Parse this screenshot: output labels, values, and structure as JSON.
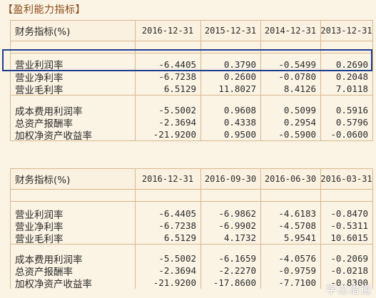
{
  "title": "【盈利能力指标】",
  "table1": {
    "header": [
      "财务指标(%)",
      "2016-12-31",
      "2015-12-31",
      "2014-12-31",
      "2013-12-31"
    ],
    "groupA": [
      {
        "label": "营业利润率",
        "values": [
          "-6.4405",
          "0.3790",
          "-0.5499",
          "0.2690"
        ]
      },
      {
        "label": "营业净利率",
        "values": [
          "-6.7238",
          "0.2600",
          "-0.0780",
          "0.2048"
        ]
      },
      {
        "label": "营业毛利率",
        "values": [
          "6.5129",
          "11.8027",
          "8.4126",
          "7.0118"
        ]
      }
    ],
    "groupB": [
      {
        "label": "成本费用利润率",
        "values": [
          "-5.5002",
          "0.9608",
          "0.5099",
          "0.5916"
        ]
      },
      {
        "label": "总资产报酬率",
        "values": [
          "-2.3694",
          "0.4338",
          "0.2954",
          "0.5796"
        ]
      },
      {
        "label": "加权净资产收益率",
        "values": [
          "-21.9200",
          "0.9500",
          "-0.5900",
          "-0.0600"
        ]
      }
    ]
  },
  "table2": {
    "header": [
      "财务指标(%)",
      "2016-12-31",
      "2016-09-30",
      "2016-06-30",
      "2016-03-31"
    ],
    "groupA": [
      {
        "label": "营业利润率",
        "values": [
          "-6.4405",
          "-6.9862",
          "-4.6183",
          "-0.8470"
        ]
      },
      {
        "label": "营业净利率",
        "values": [
          "-6.7238",
          "-6.9902",
          "-4.5708",
          "-0.5311"
        ]
      },
      {
        "label": "营业毛利率",
        "values": [
          "6.5129",
          "4.1732",
          "5.9541",
          "10.6015"
        ]
      }
    ],
    "groupB": [
      {
        "label": "成本费用利润率",
        "values": [
          "-5.5002",
          "-6.1659",
          "-4.0576",
          "-0.2069"
        ]
      },
      {
        "label": "总资产报酬率",
        "values": [
          "-2.3694",
          "-2.2270",
          "-0.9759",
          "-0.0218"
        ]
      },
      {
        "label": "加权净资产收益率",
        "values": [
          "-21.9200",
          "-17.8600",
          "-7.7100",
          "-0.8300"
        ]
      }
    ]
  },
  "watermark": "学总借道",
  "colors": {
    "highlight": "#1c3c8f",
    "border": "#d9b98f",
    "background": "#fbf3e4"
  }
}
